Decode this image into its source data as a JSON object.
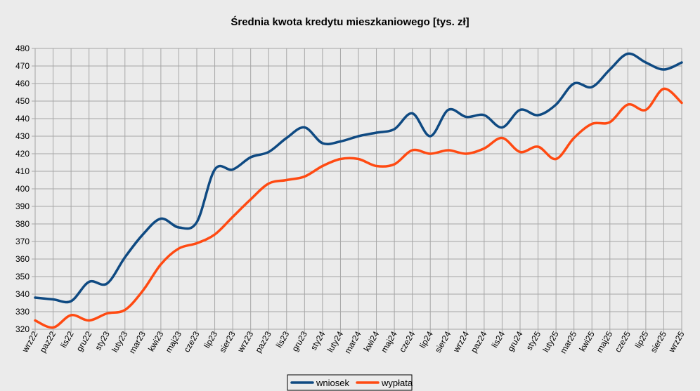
{
  "chart_data": {
    "type": "line",
    "title": "Średnia kwota kredytu mieszkaniowego [tys. zł]",
    "xlabel": "",
    "ylabel": "",
    "ylim": [
      320,
      480
    ],
    "yticks": [
      320,
      330,
      340,
      350,
      360,
      370,
      380,
      390,
      400,
      410,
      420,
      430,
      440,
      450,
      460,
      470,
      480
    ],
    "grid": true,
    "legend_position": "bottom",
    "categories": [
      "wrz22",
      "paz22",
      "lis22",
      "gru22",
      "sty23",
      "luty23",
      "mar23",
      "kwi23",
      "maj23",
      "cze23",
      "lip23",
      "sier23",
      "wrz23",
      "paz23",
      "lis23",
      "gru23",
      "sty24",
      "luty24",
      "mar24",
      "kwi24",
      "maj24",
      "cze24",
      "lip24",
      "sier24",
      "wrz24",
      "paz24",
      "lis24",
      "gru24",
      "sty25",
      "luty25",
      "mar25",
      "kwi25",
      "maj25",
      "cze25",
      "lip25",
      "sier25",
      "wrz25"
    ],
    "series": [
      {
        "name": "wniosek",
        "color": "#0f4a82",
        "values": [
          338,
          337,
          336,
          347,
          346,
          361,
          374,
          383,
          378,
          381,
          411,
          411,
          418,
          421,
          429,
          435,
          426,
          427,
          430,
          432,
          434,
          443,
          430,
          445,
          441,
          442,
          435,
          445,
          442,
          448,
          460,
          458,
          468,
          477,
          472,
          468,
          472
        ]
      },
      {
        "name": "wypłata",
        "color": "#ff4a12",
        "values": [
          325,
          321,
          328,
          325,
          329,
          331,
          342,
          357,
          366,
          369,
          374,
          384,
          394,
          403,
          405,
          407,
          413,
          417,
          417,
          413,
          414,
          422,
          420,
          422,
          420,
          423,
          429,
          421,
          424,
          417,
          429,
          437,
          438,
          448,
          445,
          457,
          449
        ]
      }
    ]
  }
}
